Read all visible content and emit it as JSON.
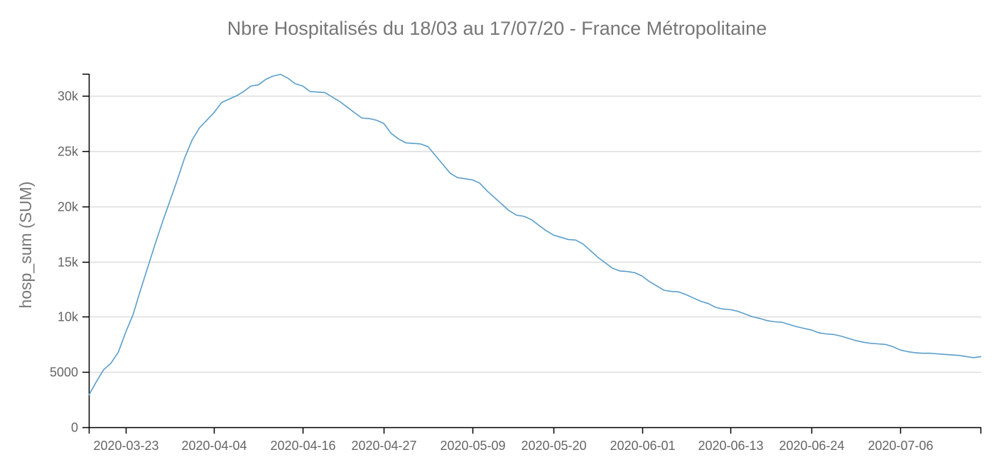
{
  "chart_data": {
    "type": "line",
    "title": "Nbre Hospitalisés du 18/03 au 17/07/20 - France Métropolitaine",
    "xlabel": "",
    "ylabel": "hosp_sum (SUM)",
    "xlim": [
      "2020-03-18",
      "2020-07-17"
    ],
    "ylim": [
      0,
      32000
    ],
    "grid": true,
    "legend": "none",
    "line_color": "#5a9ecb",
    "y_ticks": [
      {
        "value": 0,
        "label": "0"
      },
      {
        "value": 5000,
        "label": "5000"
      },
      {
        "value": 10000,
        "label": "10k"
      },
      {
        "value": 15000,
        "label": "15k"
      },
      {
        "value": 20000,
        "label": "20k"
      },
      {
        "value": 25000,
        "label": "25k"
      },
      {
        "value": 30000,
        "label": "30k"
      }
    ],
    "x_ticks": [
      "2020-03-23",
      "2020-04-04",
      "2020-04-16",
      "2020-04-27",
      "2020-05-09",
      "2020-05-20",
      "2020-06-01",
      "2020-06-13",
      "2020-06-24",
      "2020-07-06"
    ],
    "series": [
      {
        "values": [
          [
            "2020-03-18",
            2900
          ],
          [
            "2020-03-19",
            4100
          ],
          [
            "2020-03-20",
            5200
          ],
          [
            "2020-03-21",
            5800
          ],
          [
            "2020-03-22",
            6800
          ],
          [
            "2020-03-23",
            8600
          ],
          [
            "2020-03-24",
            10200
          ],
          [
            "2020-03-25",
            12400
          ],
          [
            "2020-03-26",
            14500
          ],
          [
            "2020-03-27",
            16600
          ],
          [
            "2020-03-28",
            18600
          ],
          [
            "2020-03-29",
            20500
          ],
          [
            "2020-03-30",
            22400
          ],
          [
            "2020-03-31",
            24400
          ],
          [
            "2020-04-01",
            26000
          ],
          [
            "2020-04-02",
            27100
          ],
          [
            "2020-04-03",
            27800
          ],
          [
            "2020-04-04",
            28500
          ],
          [
            "2020-04-05",
            29400
          ],
          [
            "2020-04-06",
            29700
          ],
          [
            "2020-04-07",
            30000
          ],
          [
            "2020-04-08",
            30400
          ],
          [
            "2020-04-09",
            30900
          ],
          [
            "2020-04-10",
            31000
          ],
          [
            "2020-04-11",
            31500
          ],
          [
            "2020-04-12",
            31800
          ],
          [
            "2020-04-13",
            31950
          ],
          [
            "2020-04-14",
            31600
          ],
          [
            "2020-04-15",
            31100
          ],
          [
            "2020-04-16",
            30900
          ],
          [
            "2020-04-17",
            30400
          ],
          [
            "2020-04-18",
            30350
          ],
          [
            "2020-04-19",
            30300
          ],
          [
            "2020-04-20",
            29900
          ],
          [
            "2020-04-21",
            29500
          ],
          [
            "2020-04-22",
            29000
          ],
          [
            "2020-04-23",
            28500
          ],
          [
            "2020-04-24",
            28000
          ],
          [
            "2020-04-25",
            27950
          ],
          [
            "2020-04-26",
            27800
          ],
          [
            "2020-04-27",
            27500
          ],
          [
            "2020-04-28",
            26600
          ],
          [
            "2020-04-29",
            26100
          ],
          [
            "2020-04-30",
            25750
          ],
          [
            "2020-05-01",
            25700
          ],
          [
            "2020-05-02",
            25650
          ],
          [
            "2020-05-03",
            25400
          ],
          [
            "2020-05-04",
            24600
          ],
          [
            "2020-05-05",
            23800
          ],
          [
            "2020-05-06",
            23000
          ],
          [
            "2020-05-07",
            22600
          ],
          [
            "2020-05-08",
            22500
          ],
          [
            "2020-05-09",
            22400
          ],
          [
            "2020-05-10",
            22100
          ],
          [
            "2020-05-11",
            21400
          ],
          [
            "2020-05-12",
            20800
          ],
          [
            "2020-05-13",
            20200
          ],
          [
            "2020-05-14",
            19600
          ],
          [
            "2020-05-15",
            19200
          ],
          [
            "2020-05-16",
            19100
          ],
          [
            "2020-05-17",
            18800
          ],
          [
            "2020-05-18",
            18300
          ],
          [
            "2020-05-19",
            17800
          ],
          [
            "2020-05-20",
            17400
          ],
          [
            "2020-05-21",
            17200
          ],
          [
            "2020-05-22",
            17000
          ],
          [
            "2020-05-23",
            16950
          ],
          [
            "2020-05-24",
            16600
          ],
          [
            "2020-05-25",
            16000
          ],
          [
            "2020-05-26",
            15400
          ],
          [
            "2020-05-27",
            14900
          ],
          [
            "2020-05-28",
            14400
          ],
          [
            "2020-05-29",
            14150
          ],
          [
            "2020-05-30",
            14100
          ],
          [
            "2020-05-31",
            14000
          ],
          [
            "2020-06-01",
            13700
          ],
          [
            "2020-06-02",
            13200
          ],
          [
            "2020-06-03",
            12800
          ],
          [
            "2020-06-04",
            12400
          ],
          [
            "2020-06-05",
            12300
          ],
          [
            "2020-06-06",
            12250
          ],
          [
            "2020-06-07",
            12000
          ],
          [
            "2020-06-08",
            11700
          ],
          [
            "2020-06-09",
            11400
          ],
          [
            "2020-06-10",
            11200
          ],
          [
            "2020-06-11",
            10850
          ],
          [
            "2020-06-12",
            10700
          ],
          [
            "2020-06-13",
            10650
          ],
          [
            "2020-06-14",
            10500
          ],
          [
            "2020-06-15",
            10250
          ],
          [
            "2020-06-16",
            10000
          ],
          [
            "2020-06-17",
            9850
          ],
          [
            "2020-06-18",
            9650
          ],
          [
            "2020-06-19",
            9550
          ],
          [
            "2020-06-20",
            9500
          ],
          [
            "2020-06-21",
            9300
          ],
          [
            "2020-06-22",
            9100
          ],
          [
            "2020-06-23",
            8950
          ],
          [
            "2020-06-24",
            8800
          ],
          [
            "2020-06-25",
            8550
          ],
          [
            "2020-06-26",
            8450
          ],
          [
            "2020-06-27",
            8400
          ],
          [
            "2020-06-28",
            8250
          ],
          [
            "2020-06-29",
            8050
          ],
          [
            "2020-06-30",
            7850
          ],
          [
            "2020-07-01",
            7700
          ],
          [
            "2020-07-02",
            7600
          ],
          [
            "2020-07-03",
            7550
          ],
          [
            "2020-07-04",
            7500
          ],
          [
            "2020-07-05",
            7300
          ],
          [
            "2020-07-06",
            7000
          ],
          [
            "2020-07-07",
            6850
          ],
          [
            "2020-07-08",
            6750
          ],
          [
            "2020-07-09",
            6700
          ],
          [
            "2020-07-10",
            6700
          ],
          [
            "2020-07-11",
            6650
          ],
          [
            "2020-07-12",
            6600
          ],
          [
            "2020-07-13",
            6550
          ],
          [
            "2020-07-14",
            6500
          ],
          [
            "2020-07-15",
            6400
          ],
          [
            "2020-07-16",
            6300
          ],
          [
            "2020-07-17",
            6400
          ]
        ]
      }
    ]
  }
}
